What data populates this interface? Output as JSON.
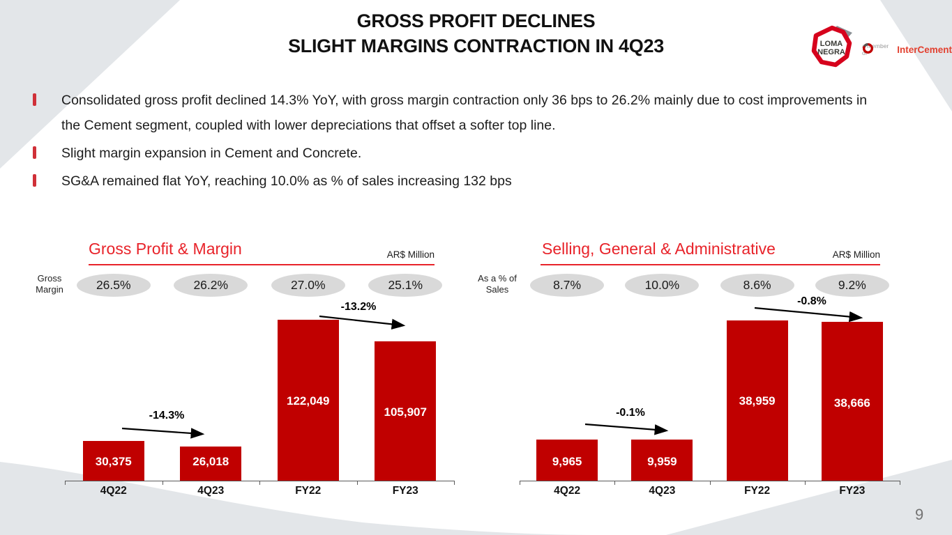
{
  "slide": {
    "title_line1": "GROSS PROFIT DECLINES",
    "title_line2": "SLIGHT MARGINS CONTRACTION IN 4Q23",
    "page_number": "9"
  },
  "logo": {
    "brand_top": "LOMA",
    "brand_bottom": "NEGRA",
    "member_text": "a member of",
    "member_brand": "InterCement"
  },
  "bullets": [
    "Consolidated gross profit declined 14.3% YoY, with gross margin contraction only 36 bps to 26.2% mainly due to cost improvements in the Cement segment, coupled with lower depreciations that offset a softer top line.",
    "Slight margin expansion in Cement and Concrete.",
    "SG&A remained flat YoY, reaching 10.0% as % of sales increasing 132 bps"
  ],
  "chart_data": [
    {
      "type": "bar",
      "title": "Gross Profit & Margin",
      "unit_label": "AR$ Million",
      "categories": [
        "4Q22",
        "4Q23",
        "FY22",
        "FY23"
      ],
      "values": [
        30375,
        26018,
        122049,
        105907
      ],
      "value_labels": [
        "30,375",
        "26,018",
        "122,049",
        "105,907"
      ],
      "secondary_metric": {
        "name": "Gross Margin",
        "labels": [
          "26.5%",
          "26.2%",
          "27.0%",
          "25.1%"
        ]
      },
      "annotations": [
        {
          "label": "-14.3%",
          "from": "4Q22",
          "to": "4Q23"
        },
        {
          "label": "-13.2%",
          "from": "FY22",
          "to": "FY23"
        }
      ],
      "ylim": [
        0,
        130000
      ],
      "bar_color": "#c00000",
      "legend_position": "none",
      "grid": false
    },
    {
      "type": "bar",
      "title": "Selling, General & Administrative",
      "unit_label": "AR$ Million",
      "categories": [
        "4Q22",
        "4Q23",
        "FY22",
        "FY23"
      ],
      "values": [
        9965,
        9959,
        38959,
        38666
      ],
      "value_labels": [
        "9,965",
        "9,959",
        "38,959",
        "38,666"
      ],
      "secondary_metric": {
        "name": "As a % of Sales",
        "labels": [
          "8.7%",
          "10.0%",
          "8.6%",
          "9.2%"
        ]
      },
      "annotations": [
        {
          "label": "-0.1%",
          "from": "4Q22",
          "to": "4Q23"
        },
        {
          "label": "-0.8%",
          "from": "FY22",
          "to": "FY23"
        }
      ],
      "ylim": [
        0,
        41500
      ],
      "bar_color": "#c00000",
      "legend_position": "none",
      "grid": false
    }
  ],
  "colors": {
    "bar_red": "#c00000",
    "accent_red": "#e8232a",
    "pill_gray": "#d9d9d9",
    "shape_gray": "#e3e6e9",
    "bullet_red": "#d03038",
    "text_dark": "#1a1a1a",
    "page_number_gray": "#737373"
  }
}
